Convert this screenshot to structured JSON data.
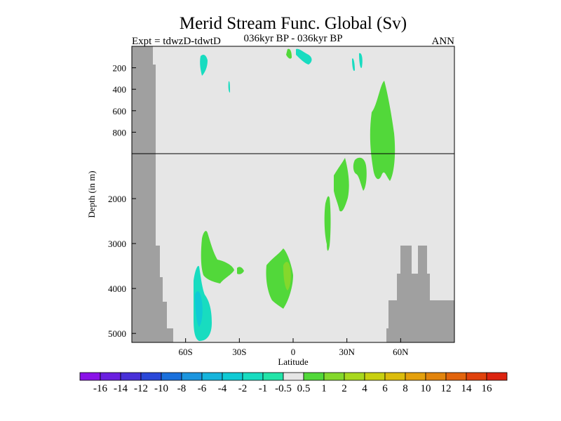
{
  "chart_data": {
    "type": "heatmap",
    "title": "Merid Stream Func. Global (Sv)",
    "subtitle_left": "Expt = tdwzD-tdwtD",
    "subtitle_center": "036kyr BP - 036kyr BP",
    "subtitle_right": "ANN",
    "xlabel": "Latitude",
    "ylabel": "Depth (in m)",
    "x_ticks": [
      "60S",
      "30S",
      "0",
      "30N",
      "60N"
    ],
    "x_tick_values": [
      -60,
      -30,
      0,
      30,
      60
    ],
    "y_ticks_upper": [
      "200",
      "400",
      "600",
      "800"
    ],
    "y_tick_values_upper": [
      200,
      400,
      600,
      800
    ],
    "y_ticks_lower": [
      "2000",
      "3000",
      "4000",
      "5000"
    ],
    "y_tick_values_lower": [
      2000,
      3000,
      4000,
      5000
    ],
    "xlim": [
      -90,
      90
    ],
    "ylim": [
      5200,
      0
    ],
    "y_scale_break": 1000,
    "colorbar": {
      "labels": [
        "-16",
        "-14",
        "-12",
        "-10",
        "-8",
        "-6",
        "-4",
        "-2",
        "-1",
        "-0.5",
        "0.5",
        "1",
        "2",
        "4",
        "6",
        "8",
        "10",
        "12",
        "14",
        "16"
      ],
      "colors": [
        "#8a12e8",
        "#6a20e0",
        "#4830d8",
        "#2a48d8",
        "#1a70dc",
        "#1c95de",
        "#16b4dc",
        "#10cad4",
        "#18dcc0",
        "#22e4a8",
        "#e6e6e6",
        "#52d83a",
        "#84d82c",
        "#a8d81e",
        "#c8d010",
        "#dcbc0c",
        "#e4a00c",
        "#e2840c",
        "#e2640c",
        "#e0420c",
        "#dc2410"
      ]
    },
    "colors": {
      "background": "#e6e6e6",
      "land": "#a0a0a0",
      "positive_1": "#52d83a",
      "positive_2": "#84d82c",
      "negative_1": "#18dcc0",
      "negative_2": "#10cad4"
    }
  }
}
